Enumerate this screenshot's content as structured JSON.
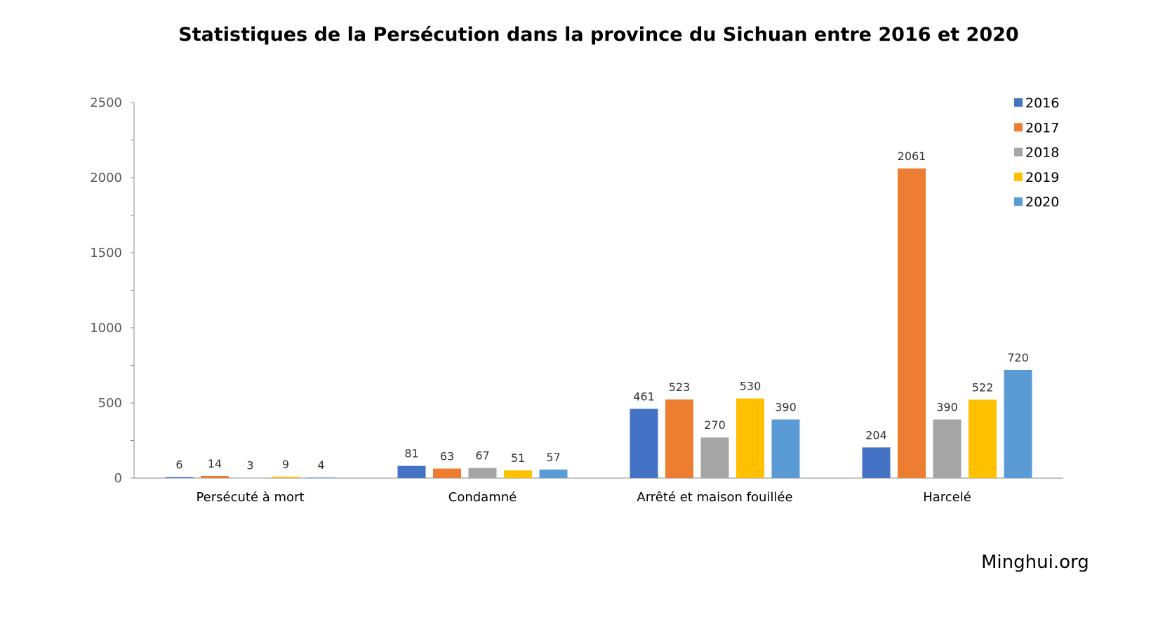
{
  "chart_data": {
    "type": "bar",
    "title": "Statistiques de la Persécution dans la province du Sichuan entre 2016 et 2020",
    "xlabel": "",
    "ylabel": "",
    "ylim": [
      0,
      2500
    ],
    "yticks": [
      "0",
      "500",
      "1000",
      "1500",
      "2000",
      "2500"
    ],
    "grid": false,
    "legend_position": "top-right",
    "categories": [
      "Persécuté à mort",
      "Condamné",
      "Arrêté et maison fouillée",
      "Harcelé"
    ],
    "series": [
      {
        "name": "2016",
        "color": "#4472C4",
        "values": [
          6,
          81,
          461,
          204
        ]
      },
      {
        "name": "2017",
        "color": "#ED7D31",
        "values": [
          14,
          63,
          523,
          2061
        ]
      },
      {
        "name": "2018",
        "color": "#A5A5A5",
        "values": [
          3,
          67,
          270,
          390
        ]
      },
      {
        "name": "2019",
        "color": "#FFC000",
        "values": [
          9,
          51,
          530,
          522
        ]
      },
      {
        "name": "2020",
        "color": "#5B9BD5",
        "values": [
          4,
          57,
          390,
          720
        ]
      }
    ]
  },
  "credit": "Minghui.org"
}
